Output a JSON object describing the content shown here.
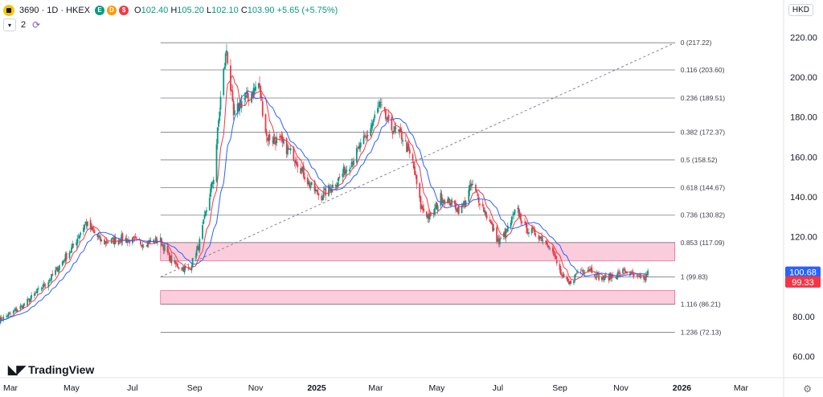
{
  "header": {
    "symbol": "3690 · 1D · HKEX",
    "badges": [
      "E",
      "D",
      "$"
    ],
    "badge_colors": [
      "#089981",
      "#ff9800",
      "#f23645"
    ],
    "open_label": "O",
    "open": "102.40",
    "high_label": "H",
    "high": "105.20",
    "low_label": "L",
    "low": "102.10",
    "close_label": "C",
    "close": "103.90",
    "change": "+5.65 (+5.75%)",
    "indicator_count": "2"
  },
  "currency": "HKD",
  "brand": "TradingView",
  "colors": {
    "up": "#089981",
    "down": "#f23645",
    "ma_fast": "#f23645",
    "ma_slow": "#2962ff",
    "zone": "#f8bbd0",
    "fib_line": "#787b86",
    "price_tag_blue": "#2962ff",
    "price_tag_red": "#f23645"
  },
  "chart_data": {
    "type": "candlestick",
    "instrument": "3690 HKEX",
    "interval": "1D",
    "ylim": [
      54,
      228
    ],
    "y_ticks": [
      60,
      80,
      100,
      120,
      140,
      160,
      180,
      200,
      220
    ],
    "y_tick_labels": [
      "60.00",
      "80.00",
      "100.00",
      "120.00",
      "140.00",
      "160.00",
      "180.00",
      "200.00",
      "220.00"
    ],
    "x_tick_labels": [
      "Mar",
      "May",
      "Jul",
      "Sep",
      "Nov",
      "2025",
      "Mar",
      "May",
      "Jul",
      "Sep",
      "Nov",
      "2026",
      "Mar"
    ],
    "x_tick_dates": [
      "2024-03-01",
      "2024-05-01",
      "2024-07-01",
      "2024-09-01",
      "2024-11-01",
      "2025-01-01",
      "2025-03-01",
      "2025-05-01",
      "2025-07-01",
      "2025-09-01",
      "2025-11-01",
      "2026-01-01",
      "2026-03-01"
    ],
    "x_range": [
      "2024-02-18",
      "2026-04-08"
    ],
    "price_path": [
      [
        "2024-02-19",
        78
      ],
      [
        "2024-03-15",
        86
      ],
      [
        "2024-04-10",
        99
      ],
      [
        "2024-05-01",
        114
      ],
      [
        "2024-05-15",
        127
      ],
      [
        "2024-06-01",
        117
      ],
      [
        "2024-06-20",
        119
      ],
      [
        "2024-07-10",
        117
      ],
      [
        "2024-07-29",
        118
      ],
      [
        "2024-08-10",
        107
      ],
      [
        "2024-08-26",
        103
      ],
      [
        "2024-09-05",
        115
      ],
      [
        "2024-09-20",
        150
      ],
      [
        "2024-09-28",
        195
      ],
      [
        "2024-10-03",
        214
      ],
      [
        "2024-10-10",
        180
      ],
      [
        "2024-10-18",
        188
      ],
      [
        "2024-10-25",
        190
      ],
      [
        "2024-11-04",
        197
      ],
      [
        "2024-11-12",
        170
      ],
      [
        "2024-11-25",
        168
      ],
      [
        "2024-12-10",
        160
      ],
      [
        "2024-12-25",
        146
      ],
      [
        "2025-01-05",
        140
      ],
      [
        "2025-01-20",
        147
      ],
      [
        "2025-02-05",
        158
      ],
      [
        "2025-02-20",
        170
      ],
      [
        "2025-03-05",
        186
      ],
      [
        "2025-03-15",
        175
      ],
      [
        "2025-03-28",
        170
      ],
      [
        "2025-04-07",
        157
      ],
      [
        "2025-04-15",
        135
      ],
      [
        "2025-04-25",
        129
      ],
      [
        "2025-05-05",
        140
      ],
      [
        "2025-05-15",
        137
      ],
      [
        "2025-05-25",
        133
      ],
      [
        "2025-06-05",
        146
      ],
      [
        "2025-06-15",
        136
      ],
      [
        "2025-06-25",
        125
      ],
      [
        "2025-07-02",
        117
      ],
      [
        "2025-07-10",
        123
      ],
      [
        "2025-07-20",
        134
      ],
      [
        "2025-07-29",
        124
      ],
      [
        "2025-08-10",
        121
      ],
      [
        "2025-08-22",
        116
      ],
      [
        "2025-09-03",
        100
      ],
      [
        "2025-09-10",
        96
      ],
      [
        "2025-09-20",
        103
      ],
      [
        "2025-10-01",
        104
      ],
      [
        "2025-10-12",
        99
      ],
      [
        "2025-10-22",
        100
      ],
      [
        "2025-11-05",
        103
      ],
      [
        "2025-11-15",
        100
      ],
      [
        "2025-11-24",
        98
      ],
      [
        "2025-11-28",
        103
      ]
    ],
    "fib_levels": [
      {
        "ratio": "0",
        "price": 217.22,
        "label": "0 (217.22)"
      },
      {
        "ratio": "0.116",
        "price": 203.6,
        "label": "0.116 (203.60)"
      },
      {
        "ratio": "0.236",
        "price": 189.51,
        "label": "0.236 (189.51)"
      },
      {
        "ratio": "0.382",
        "price": 172.37,
        "label": "0.382 (172.37)"
      },
      {
        "ratio": "0.5",
        "price": 158.52,
        "label": "0.5 (158.52)"
      },
      {
        "ratio": "0.618",
        "price": 144.67,
        "label": "0.618 (144.67)"
      },
      {
        "ratio": "0.736",
        "price": 130.82,
        "label": "0.736 (130.82)"
      },
      {
        "ratio": "0.853",
        "price": 117.09,
        "label": "0.853 (117.09)"
      },
      {
        "ratio": "1",
        "price": 99.83,
        "label": "1 (99.83)"
      },
      {
        "ratio": "1.116",
        "price": 86.21,
        "label": "1.116 (86.21)"
      },
      {
        "ratio": "1.236",
        "price": 72.13,
        "label": "1.236 (72.13)"
      }
    ],
    "fib_start_date": "2024-07-29",
    "fib_end_date": "2025-12-25",
    "fib_trendline": [
      [
        "2024-07-29",
        99.83
      ],
      [
        "2025-12-25",
        217.22
      ]
    ],
    "zones": [
      {
        "top": 117.09,
        "bottom": 108.0
      },
      {
        "top": 93.0,
        "bottom": 86.21
      }
    ],
    "last_price_tags": [
      {
        "price": 100.68,
        "text": "100.68",
        "color": "#2962ff"
      },
      {
        "price": 99.33,
        "text": "99.33",
        "color": "#f23645"
      }
    ],
    "legend": "none",
    "grid": false
  }
}
